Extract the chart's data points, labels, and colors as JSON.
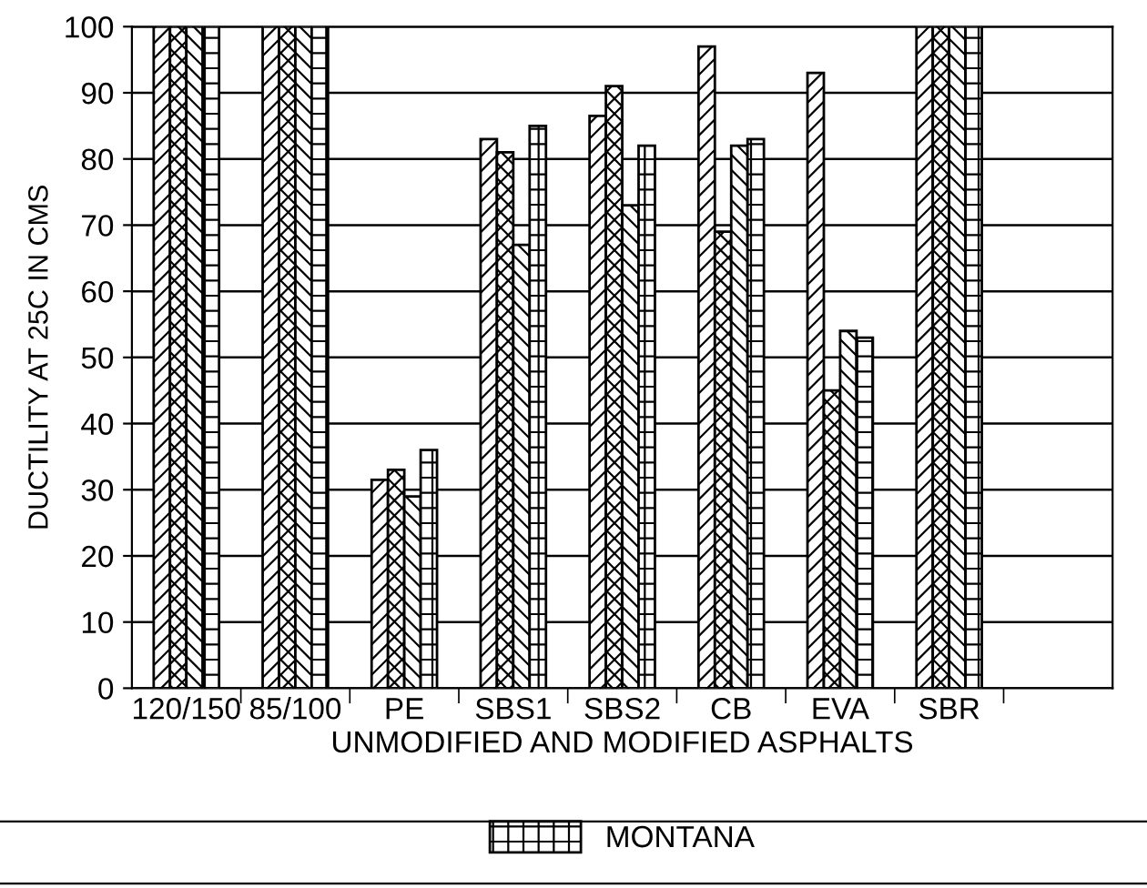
{
  "chart_data": {
    "type": "bar",
    "xlabel": "UNMODIFIED AND MODIFIED ASPHALTS",
    "ylabel": "DUCTILITY AT 25C IN CMS",
    "categories": [
      "120/150",
      "85/100",
      "PE",
      "SBS1",
      "SBS2",
      "CB",
      "EVA",
      "SBR",
      null
    ],
    "series": [
      {
        "color": "#000000",
        "values": [
          100,
          100,
          31.5,
          83,
          86.5,
          97,
          93,
          100,
          null
        ]
      },
      {
        "color": "#000000",
        "values": [
          100,
          100,
          33,
          81,
          91,
          69,
          45,
          100,
          null
        ]
      },
      {
        "color": "#000000",
        "values": [
          100,
          100,
          29,
          67,
          73,
          82,
          54,
          100,
          null
        ]
      },
      {
        "name": "MONTANA",
        "color": "#000000",
        "values": [
          100,
          100,
          36,
          85,
          82,
          83,
          53,
          100,
          null
        ]
      }
    ],
    "ylim": [
      0,
      100
    ],
    "yticks": [
      0,
      10,
      20,
      30,
      40,
      50,
      60,
      70,
      80,
      90,
      100
    ],
    "grid": "y",
    "legend": "bottom"
  }
}
